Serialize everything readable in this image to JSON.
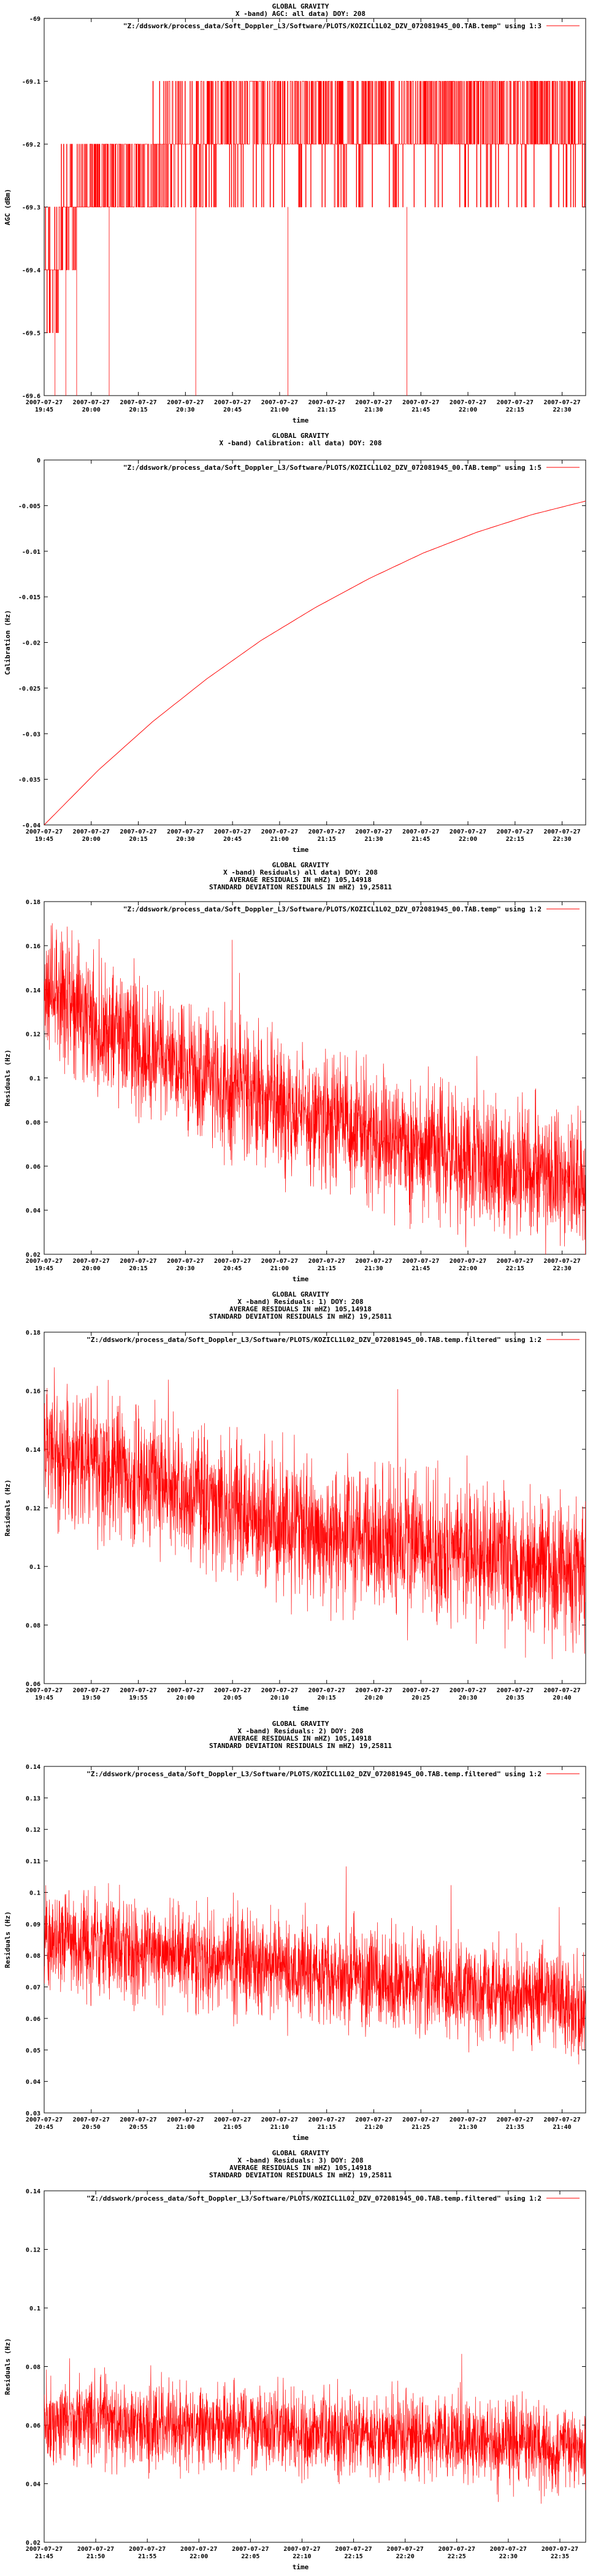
{
  "chart_data": [
    {
      "type": "line",
      "title_lines": [
        "GLOBAL GRAVITY",
        "X -band) AGC: all data) DOY: 208"
      ],
      "legend": "\"Z:/ddswork/process_data/Soft_Doppler_L3/Software/PLOTS/KOZICL1L02_DZV_072081945_00.TAB.temp\" using 1:3",
      "ylabel": "AGC (dBm)",
      "xlabel": "time",
      "ylim": [
        -69.6,
        -69.0
      ],
      "yticks": [
        "-69",
        "-69.1",
        "-69.2",
        "-69.3",
        "-69.4",
        "-69.5",
        "-69.6"
      ],
      "xticks": [
        "19:45",
        "20:00",
        "20:15",
        "20:30",
        "20:45",
        "21:00",
        "21:15",
        "21:30",
        "21:45",
        "22:00",
        "22:15",
        "22:30"
      ],
      "xdate": "2007-07-27",
      "color": "#ff0000",
      "description_style": "step levels"
    },
    {
      "type": "line",
      "title_lines": [
        "GLOBAL GRAVITY",
        "X -band) Calibration: all data) DOY: 208"
      ],
      "legend": "\"Z:/ddswork/process_data/Soft_Doppler_L3/Software/PLOTS/KOZICL1L02_DZV_072081945_00.TAB.temp\" using 1:5",
      "ylabel": "Calibration (Hz)",
      "xlabel": "time",
      "ylim": [
        -0.04,
        0.0
      ],
      "yticks": [
        "0",
        "-0.005",
        "-0.01",
        "-0.015",
        "-0.02",
        "-0.025",
        "-0.03",
        "-0.035",
        "-0.04"
      ],
      "xticks": [
        "19:45",
        "20:00",
        "20:15",
        "20:30",
        "20:45",
        "21:00",
        "21:15",
        "21:30",
        "21:45",
        "22:00",
        "22:15",
        "22:30"
      ],
      "xdate": "2007-07-27",
      "color": "#ff0000",
      "curve": [
        [
          0,
          -0.04
        ],
        [
          0.1,
          -0.034
        ],
        [
          0.2,
          -0.0287
        ],
        [
          0.3,
          -0.024
        ],
        [
          0.4,
          -0.0198
        ],
        [
          0.5,
          -0.0162
        ],
        [
          0.6,
          -0.013
        ],
        [
          0.7,
          -0.0102
        ],
        [
          0.8,
          -0.0079
        ],
        [
          0.9,
          -0.006
        ],
        [
          1.0,
          -0.0045
        ]
      ]
    },
    {
      "type": "line",
      "title_lines": [
        "GLOBAL GRAVITY",
        "X -band) Residuals) all data) DOY: 208",
        "AVERAGE RESIDUALS IN mHZ) 105,14918",
        "STANDARD DEVIATION RESIDUALS IN mHZ) 19,25811"
      ],
      "legend": "\"Z:/ddswork/process_data/Soft_Doppler_L3/Software/PLOTS/KOZICL1L02_DZV_072081945_00.TAB.temp\" using 1:2",
      "ylabel": "Residuals (Hz)",
      "xlabel": "time",
      "ylim": [
        0.02,
        0.18
      ],
      "yticks": [
        "0.18",
        "0.16",
        "0.14",
        "0.12",
        "0.1",
        "0.08",
        "0.06",
        "0.04",
        "0.02"
      ],
      "xticks": [
        "19:45",
        "20:00",
        "20:15",
        "20:30",
        "20:45",
        "21:00",
        "21:15",
        "21:30",
        "21:45",
        "22:00",
        "22:15",
        "22:30"
      ],
      "xdate": "2007-07-27",
      "color": "#ff0000",
      "trend": [
        [
          0,
          0.14
        ],
        [
          0.25,
          0.105
        ],
        [
          0.5,
          0.082
        ],
        [
          0.75,
          0.065
        ],
        [
          1.0,
          0.052
        ]
      ],
      "noise": 0.022
    },
    {
      "type": "line",
      "title_lines": [
        "GLOBAL GRAVITY",
        "X -band) Residuals: 1) DOY: 208",
        "AVERAGE RESIDUALS IN mHZ) 105,14918",
        "STANDARD DEVIATION RESIDUALS IN mHZ) 19,25811"
      ],
      "legend": "\"Z:/ddswork/process_data/Soft_Doppler_L3/Software/PLOTS/KOZICL1L02_DZV_072081945_00.TAB.temp.filtered\" using 1:2",
      "ylabel": "Residuals (Hz)",
      "xlabel": "time",
      "ylim": [
        0.06,
        0.18
      ],
      "yticks": [
        "0.18",
        "0.16",
        "0.14",
        "0.12",
        "0.1",
        "0.08",
        "0.06"
      ],
      "xticks": [
        "19:45",
        "19:50",
        "19:55",
        "20:00",
        "20:05",
        "20:10",
        "20:15",
        "20:20",
        "20:25",
        "20:30",
        "20:35",
        "20:40"
      ],
      "xdate": "2007-07-27",
      "color": "#ff0000",
      "trend": [
        [
          0,
          0.14
        ],
        [
          0.5,
          0.112
        ],
        [
          1.0,
          0.098
        ]
      ],
      "noise": 0.018
    },
    {
      "type": "line",
      "title_lines": [
        "GLOBAL GRAVITY",
        "X -band) Residuals: 2) DOY: 208",
        "AVERAGE RESIDUALS IN mHZ) 105,14918",
        "STANDARD DEVIATION RESIDUALS IN mHZ) 19,25811"
      ],
      "legend": "\"Z:/ddswork/process_data/Soft_Doppler_L3/Software/PLOTS/KOZICL1L02_DZV_072081945_00.TAB.temp.filtered\" using 1:2",
      "ylabel": "Residuals (Hz)",
      "xlabel": "time",
      "ylim": [
        0.03,
        0.14
      ],
      "yticks": [
        "0.14",
        "0.13",
        "0.12",
        "0.11",
        "0.1",
        "0.09",
        "0.08",
        "0.07",
        "0.06",
        "0.05",
        "0.04",
        "0.03"
      ],
      "xticks": [
        "20:45",
        "20:50",
        "20:55",
        "21:00",
        "21:05",
        "21:10",
        "21:15",
        "21:20",
        "21:25",
        "21:30",
        "21:35",
        "21:40"
      ],
      "xdate": "2007-07-27",
      "color": "#ff0000",
      "trend": [
        [
          0,
          0.085
        ],
        [
          0.5,
          0.075
        ],
        [
          1.0,
          0.065
        ]
      ],
      "noise": 0.012
    },
    {
      "type": "line",
      "title_lines": [
        "GLOBAL GRAVITY",
        "X -band) Residuals: 3) DOY: 208",
        "AVERAGE RESIDUALS IN mHZ) 105,14918",
        "STANDARD DEVIATION RESIDUALS IN mHZ) 19,25811"
      ],
      "legend": "\"Z:/ddswork/process_data/Soft_Doppler_L3/Software/PLOTS/KOZICL1L02_DZV_072081945_00.TAB.temp.filtered\" using 1:2",
      "ylabel": "Residuals (Hz)",
      "xlabel": "time",
      "ylim": [
        0.02,
        0.14
      ],
      "yticks": [
        "0.14",
        "0.12",
        "0.1",
        "0.08",
        "0.06",
        "0.04",
        "0.02"
      ],
      "xticks": [
        "21:45",
        "21:50",
        "21:55",
        "22:00",
        "22:05",
        "22:10",
        "22:15",
        "22:20",
        "22:25",
        "22:30",
        "22:35"
      ],
      "xdate": "2007-07-27",
      "color": "#ff0000",
      "trend": [
        [
          0,
          0.062
        ],
        [
          0.5,
          0.058
        ],
        [
          1.0,
          0.052
        ]
      ],
      "noise": 0.011
    }
  ]
}
